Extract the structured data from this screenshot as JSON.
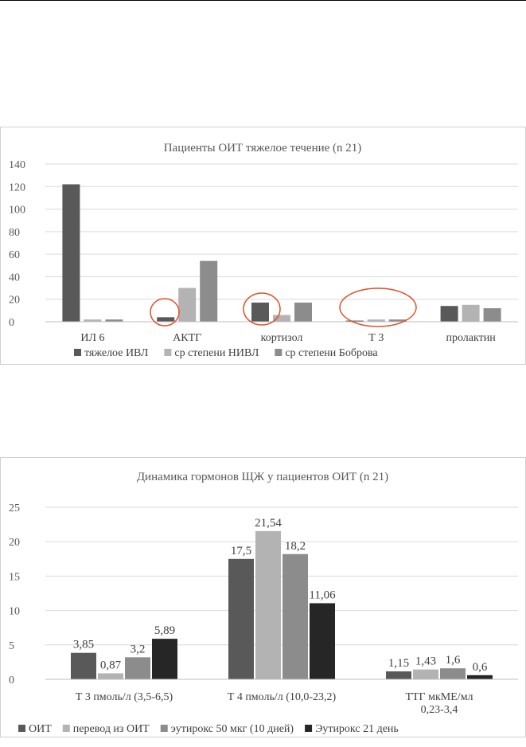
{
  "chart_data": [
    {
      "type": "bar",
      "title": "Пациенты ОИТ тяжелое течение (n 21)",
      "categories": [
        "ИЛ 6",
        "АКТГ",
        "кортизол",
        "Т 3",
        "пролактин"
      ],
      "series": [
        {
          "name": "тяжелое ИВЛ",
          "color": "#595959",
          "values": [
            122,
            4,
            17,
            1,
            14
          ]
        },
        {
          "name": "ср степени НИВЛ",
          "color": "#b3b3b3",
          "values": [
            2,
            30,
            6,
            2,
            15
          ]
        },
        {
          "name": "ср степени Боброва",
          "color": "#8c8c8c",
          "values": [
            2,
            54,
            17,
            2,
            12
          ]
        }
      ],
      "yticks": [
        "0",
        "20",
        "40",
        "60",
        "80",
        "100",
        "120",
        "140"
      ],
      "ylim": [
        0,
        140
      ],
      "grid": true,
      "legend": "bottom",
      "annotations": "red circles around АКТГ (тяжелое ИВЛ), кортизол (тяжелое ИВЛ) and all Т 3 bars",
      "highlight_color": "#e0502a"
    },
    {
      "type": "bar",
      "title": "Динамика гормонов ЩЖ у пациентов ОИТ (n 21)",
      "categories": [
        "Т 3 пмоль/л (3,5-6,5)",
        "Т 4 пмоль/л (10,0-23,2)",
        "ТТГ мкМЕ/мл 0,23-3,4"
      ],
      "category_lines": [
        [
          "Т 3 пмоль/л (3,5-6,5)"
        ],
        [
          "Т 4 пмоль/л (10,0-23,2)"
        ],
        [
          "ТТГ мкМЕ/мл",
          "0,23-3,4"
        ]
      ],
      "series": [
        {
          "name": "ОИТ",
          "color": "#595959",
          "values": [
            3.85,
            17.5,
            1.15
          ],
          "labels": [
            "3,85",
            "17,5",
            "1,15"
          ]
        },
        {
          "name": "перевод из ОИТ",
          "color": "#b3b3b3",
          "values": [
            0.87,
            21.54,
            1.43
          ],
          "labels": [
            "0,87",
            "21,54",
            "1,43"
          ]
        },
        {
          "name": "эутирокс 50 мкг (10 дней)",
          "color": "#8c8c8c",
          "values": [
            3.2,
            18.2,
            1.6
          ],
          "labels": [
            "3,2",
            "18,2",
            "1,6"
          ]
        },
        {
          "name": "Эутирокс 21 день",
          "color": "#262626",
          "values": [
            5.89,
            11.06,
            0.6
          ],
          "labels": [
            "5,89",
            "11,06",
            "0,6"
          ]
        }
      ],
      "yticks": [
        "0",
        "5",
        "10",
        "15",
        "20",
        "25"
      ],
      "ylim": [
        0,
        25
      ],
      "grid": true,
      "legend": "bottom"
    }
  ]
}
